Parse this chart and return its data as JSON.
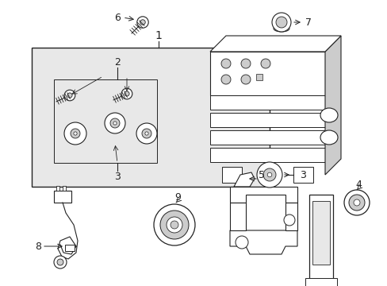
{
  "bg_color": "#ffffff",
  "line_color": "#222222",
  "gray_fill": "#cccccc",
  "light_gray": "#e8e8e8",
  "figsize": [
    4.89,
    3.6
  ],
  "dpi": 100
}
